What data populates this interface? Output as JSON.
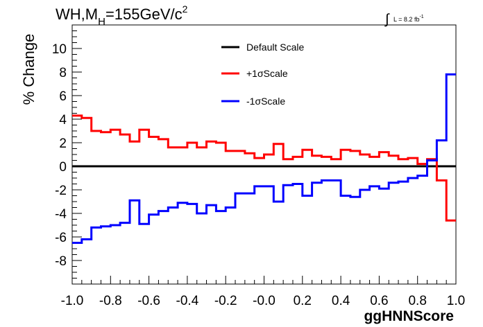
{
  "header": {
    "title_main": "WH,M",
    "title_sub": "H",
    "title_rest": "=155GeV/c",
    "title_sup": "2",
    "lumi_prefix": "L = 8.2 fb",
    "lumi_sup": "-1"
  },
  "chart_data": {
    "type": "line",
    "style": "step-histogram",
    "xlabel": "ggHNNScore",
    "ylabel": "% Change",
    "xlim": [
      -1.0,
      1.0
    ],
    "ylim": [
      -10,
      12
    ],
    "x_ticks": [
      -1.0,
      -0.8,
      -0.6,
      -0.4,
      -0.2,
      0.0,
      0.2,
      0.4,
      0.6,
      0.8,
      1.0
    ],
    "x_tick_labels": [
      "-1.0",
      "-0.8",
      "-0.6",
      "-0.4",
      "-0.2",
      "-0.0",
      "0.2",
      "0.4",
      "0.6",
      "0.8",
      "1.0"
    ],
    "y_ticks": [
      -8,
      -6,
      -4,
      -2,
      0,
      2,
      4,
      6,
      8,
      10
    ],
    "y_tick_labels": [
      "-8",
      "-6",
      "-4",
      "-2",
      "0",
      "2",
      "4",
      "6",
      "8",
      "10"
    ],
    "bin_edges": [
      -1.0,
      -0.95,
      -0.9,
      -0.85,
      -0.8,
      -0.75,
      -0.7,
      -0.65,
      -0.6,
      -0.55,
      -0.5,
      -0.45,
      -0.4,
      -0.35,
      -0.3,
      -0.25,
      -0.2,
      -0.15,
      -0.1,
      -0.05,
      0.0,
      0.05,
      0.1,
      0.15,
      0.2,
      0.25,
      0.3,
      0.35,
      0.4,
      0.45,
      0.5,
      0.55,
      0.6,
      0.65,
      0.7,
      0.75,
      0.8,
      0.85,
      0.9,
      0.95,
      1.0
    ],
    "grid": false,
    "legend_position": "top-center",
    "series": [
      {
        "name": "Default Scale",
        "color": "#000000",
        "values": [
          0,
          0,
          0,
          0,
          0,
          0,
          0,
          0,
          0,
          0,
          0,
          0,
          0,
          0,
          0,
          0,
          0,
          0,
          0,
          0,
          0,
          0,
          0,
          0,
          0,
          0,
          0,
          0,
          0,
          0,
          0,
          0,
          0,
          0,
          0,
          0,
          0,
          0,
          0,
          0
        ]
      },
      {
        "name": "+1σScale",
        "color": "#ff0000",
        "values": [
          4.3,
          4.1,
          3.0,
          2.9,
          3.1,
          2.7,
          2.1,
          3.1,
          2.5,
          2.3,
          1.6,
          1.6,
          2.0,
          1.6,
          2.1,
          2.0,
          1.3,
          1.3,
          1.1,
          0.7,
          1.0,
          1.9,
          0.6,
          0.8,
          1.4,
          0.9,
          0.8,
          0.6,
          1.4,
          1.3,
          1.0,
          0.8,
          1.2,
          0.9,
          0.6,
          0.7,
          0.2,
          0.6,
          -1.2,
          -4.6
        ]
      },
      {
        "name": "-1σScale",
        "color": "#0000ff",
        "values": [
          -6.5,
          -6.2,
          -5.2,
          -5.1,
          -5.0,
          -4.8,
          -2.9,
          -4.9,
          -4.1,
          -3.8,
          -3.5,
          -3.1,
          -3.2,
          -4.0,
          -3.3,
          -3.8,
          -3.5,
          -2.3,
          -2.3,
          -1.7,
          -1.7,
          -3.0,
          -1.6,
          -1.5,
          -2.5,
          -1.4,
          -1.2,
          -1.2,
          -2.5,
          -2.6,
          -2.0,
          -1.7,
          -1.9,
          -1.4,
          -1.3,
          -1.0,
          -0.8,
          0.5,
          2.2,
          7.8
        ]
      }
    ]
  }
}
